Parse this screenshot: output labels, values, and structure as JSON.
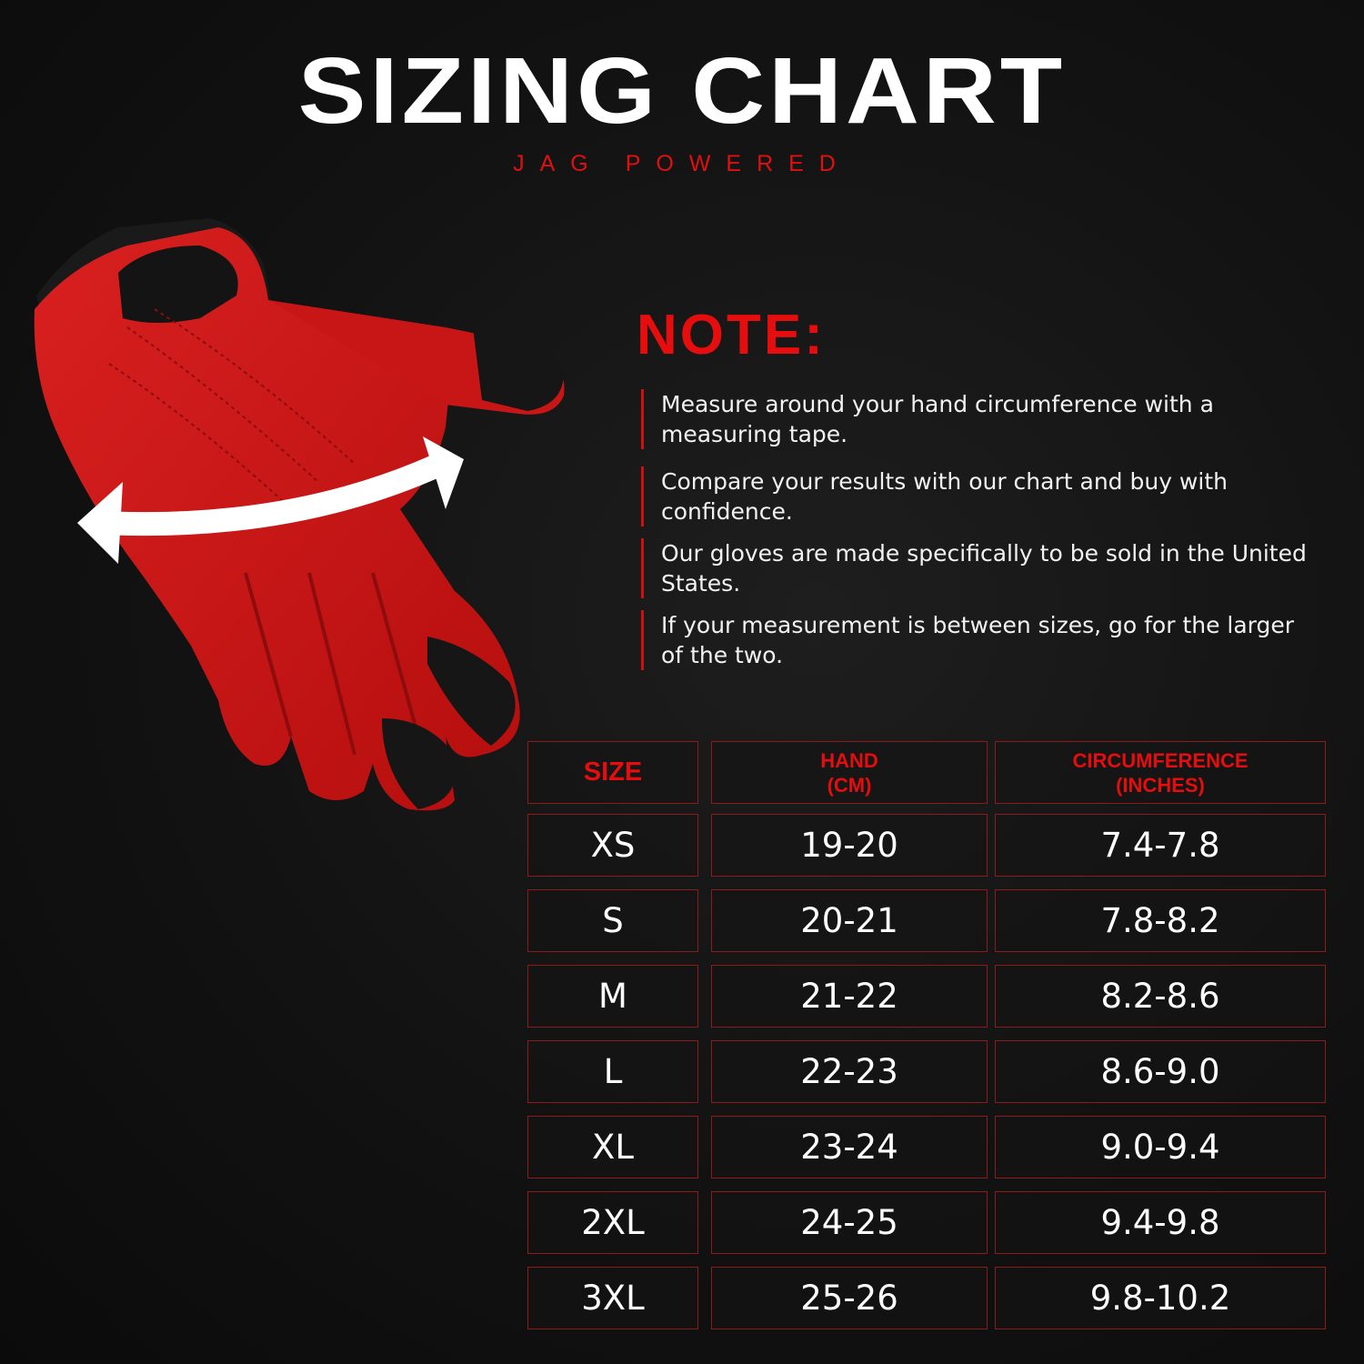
{
  "header": {
    "title": "SIZING CHART",
    "subtitle": "JAG POWERED"
  },
  "colors": {
    "accent": "#e50d0d",
    "background": "#121212",
    "text": "#ffffff",
    "border": "#8a1c1c"
  },
  "image": {
    "subject": "red leather glove with circumference arrow"
  },
  "notes": {
    "title": "NOTE:",
    "items": [
      "Measure around your hand circumference with a measuring tape.",
      "Compare your results with our chart and buy with confidence.",
      "Our gloves are made specifically to be sold in the United States.",
      "If  your measurement is between sizes, go for the larger of the two."
    ]
  },
  "table": {
    "headers": [
      "SIZE",
      "HAND\n(CM)",
      "CIRCUMFERENCE\n(INCHES)"
    ],
    "rows": [
      [
        "XS",
        "19-20",
        "7.4-7.8"
      ],
      [
        "S",
        "20-21",
        "7.8-8.2"
      ],
      [
        "M",
        "21-22",
        "8.2-8.6"
      ],
      [
        "L",
        "22-23",
        "8.6-9.0"
      ],
      [
        "XL",
        "23-24",
        "9.0-9.4"
      ],
      [
        "2XL",
        "24-25",
        "9.4-9.8"
      ],
      [
        "3XL",
        "25-26",
        "9.8-10.2"
      ]
    ]
  }
}
